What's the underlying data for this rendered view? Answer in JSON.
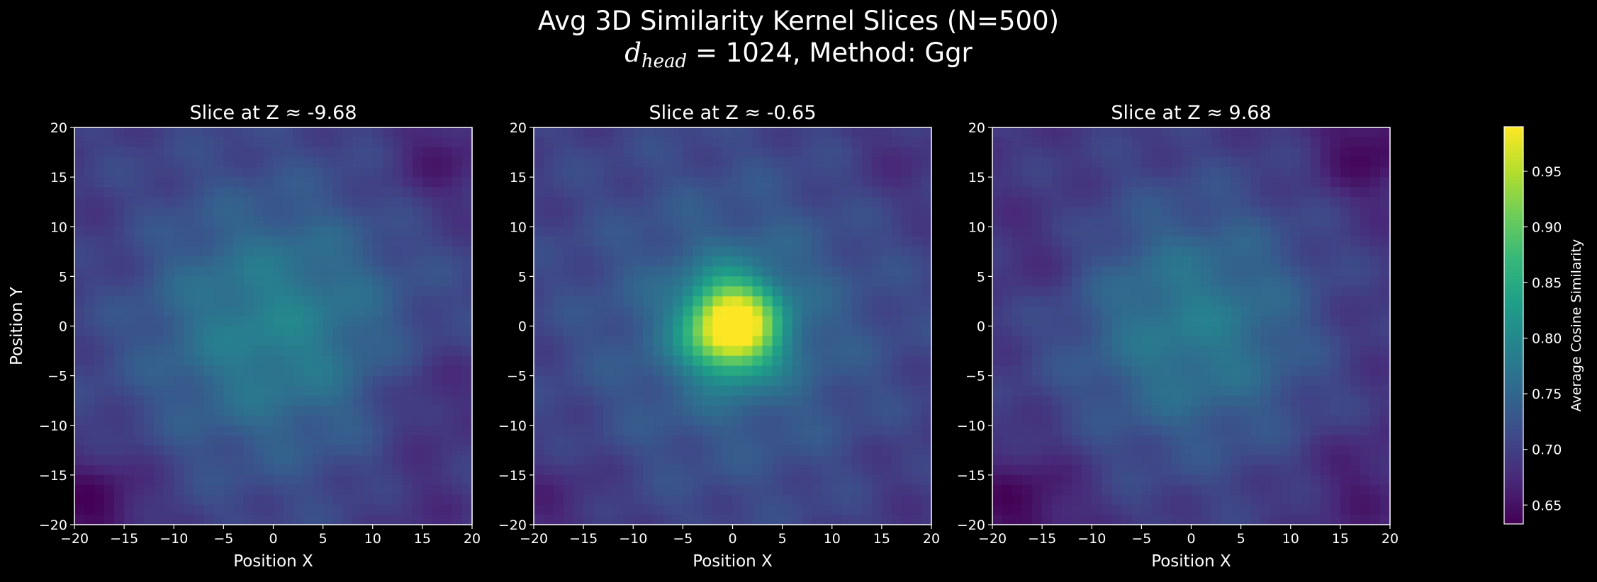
{
  "chart_data": {
    "type": "heatmap",
    "title": "Avg 3D Similarity Kernel Slices (N=500)",
    "subtitle": {
      "symbol": "d",
      "subscript": "head",
      "rest": "= 1024, Method: Ggr"
    },
    "xlabel": "Position X",
    "ylabel": "Position Y",
    "xlim": [
      -20,
      20
    ],
    "ylim": [
      -20,
      20
    ],
    "ticks": [
      -20,
      -15,
      -10,
      -5,
      0,
      5,
      10,
      15,
      20
    ],
    "tick_labels": [
      "−20",
      "−15",
      "−10",
      "−5",
      "0",
      "5",
      "10",
      "15",
      "20"
    ],
    "grid": false,
    "colormap": "viridis",
    "colorbar": {
      "label": "Average Cosine Similarity",
      "range": [
        0.633,
        0.99
      ],
      "ticks": [
        0.65,
        0.7,
        0.75,
        0.8,
        0.85,
        0.9,
        0.95
      ],
      "tick_labels": [
        "0.65",
        "0.70",
        "0.75",
        "0.80",
        "0.85",
        "0.90",
        "0.95"
      ]
    },
    "resolution": 40,
    "panels": [
      {
        "title": "Slice at Z ≈ -9.68",
        "peak": 0.79,
        "floor": 0.7,
        "dark_patches": [
          {
            "x": -18,
            "y": -18,
            "value": 0.64
          },
          {
            "x": 17,
            "y": 17,
            "value": 0.66
          },
          {
            "x": 16,
            "y": -7,
            "value": 0.67
          },
          {
            "x": -18,
            "y": 8,
            "value": 0.69
          },
          {
            "x": 15,
            "y": -18,
            "value": 0.68
          }
        ]
      },
      {
        "title": "Slice at Z ≈ -0.65",
        "peak": 0.99,
        "floor": 0.7,
        "dark_patches": [
          {
            "x": -18,
            "y": -18,
            "value": 0.67
          },
          {
            "x": 17,
            "y": 17,
            "value": 0.68
          },
          {
            "x": 18,
            "y": -16,
            "value": 0.69
          }
        ]
      },
      {
        "title": "Slice at Z ≈ 9.68",
        "peak": 0.78,
        "floor": 0.69,
        "dark_patches": [
          {
            "x": -17,
            "y": -18,
            "value": 0.64
          },
          {
            "x": 18,
            "y": 18,
            "value": 0.64
          },
          {
            "x": -15,
            "y": 7,
            "value": 0.67
          },
          {
            "x": 17,
            "y": -16,
            "value": 0.66
          },
          {
            "x": 18,
            "y": 0,
            "value": 0.68
          }
        ]
      }
    ]
  }
}
